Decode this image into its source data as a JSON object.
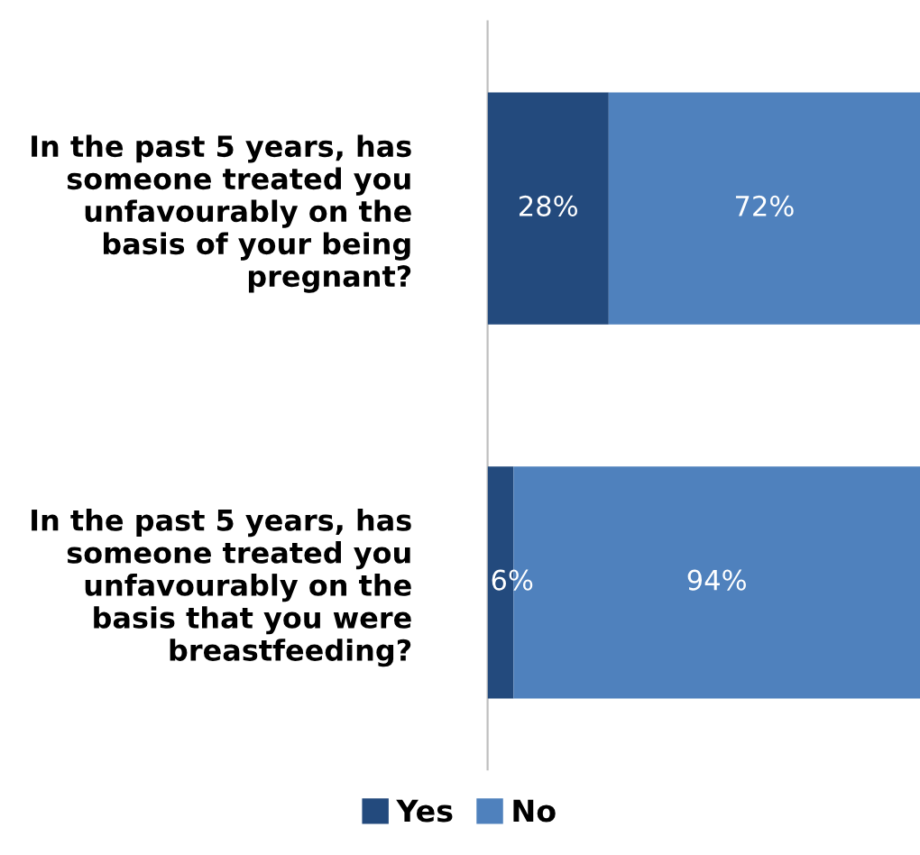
{
  "chart_data": {
    "type": "bar",
    "orientation": "horizontal",
    "stacked": true,
    "categories": [
      "In the past 5 years, has someone treated you unfavourably on the basis of your being pregnant?",
      "In the past 5 years, has someone treated you unfavourably on the basis that you were breastfeeding?"
    ],
    "series": [
      {
        "name": "Yes",
        "color": "#234a7d",
        "values": [
          28,
          6
        ],
        "value_labels": [
          "28%",
          "6%"
        ]
      },
      {
        "name": "No",
        "color": "#4f81bd",
        "values": [
          72,
          94
        ],
        "value_labels": [
          "72%",
          "94%"
        ]
      }
    ],
    "legend": "bottom",
    "grid": false,
    "tick_labels": "y"
  }
}
